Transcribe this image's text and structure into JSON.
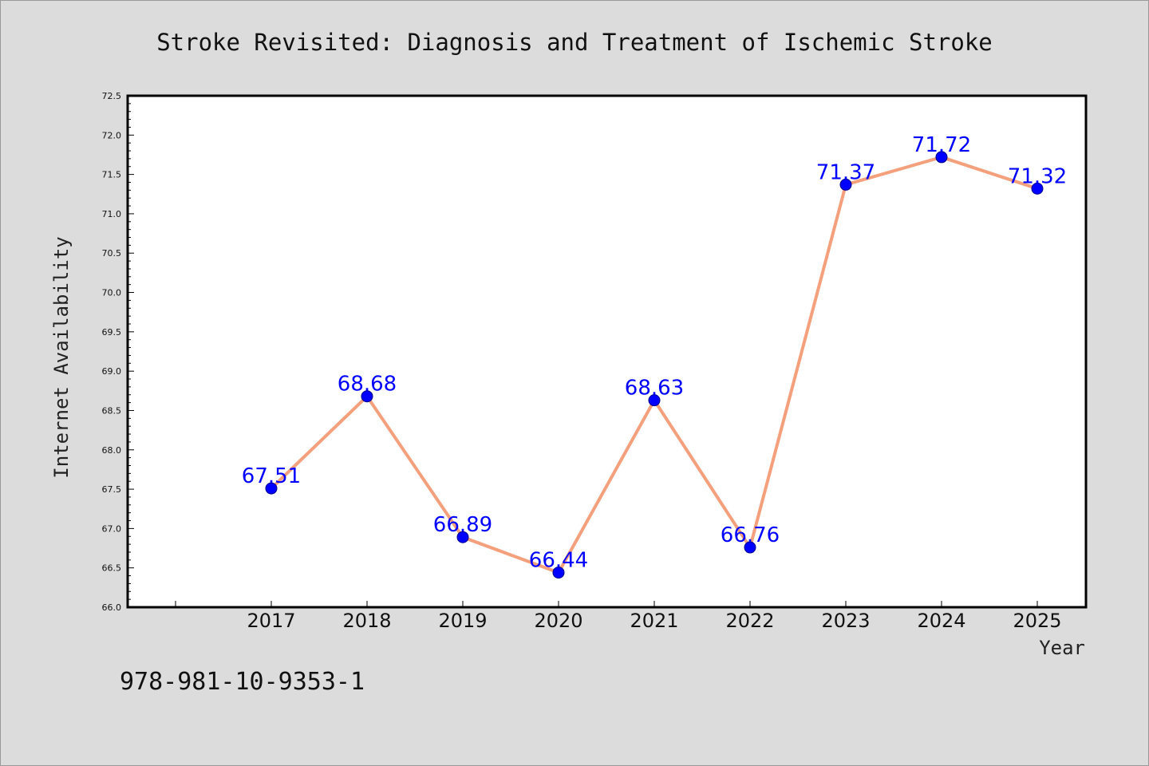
{
  "chart_data": {
    "type": "line",
    "title": "Stroke Revisited: Diagnosis and Treatment of Ischemic Stroke",
    "xlabel": "Year",
    "ylabel": "Internet Availability",
    "categories": [
      "2017",
      "2018",
      "2019",
      "2020",
      "2021",
      "2022",
      "2023",
      "2024",
      "2025"
    ],
    "values": [
      67.51,
      68.68,
      66.89,
      66.44,
      68.63,
      66.76,
      71.37,
      71.72,
      71.32
    ],
    "data_labels": [
      "67.51",
      "68.68",
      "66.89",
      "66.44",
      "68.63",
      "66.76",
      "71.37",
      "71.72",
      "71.32"
    ],
    "ylim": [
      66.0,
      72.5
    ],
    "yticks": [
      "66.0",
      "66.5",
      "67.0",
      "67.5",
      "68.0",
      "68.5",
      "69.0",
      "69.5",
      "70.0",
      "70.5",
      "71.0",
      "71.5",
      "72.0",
      "72.5"
    ],
    "grid": false,
    "line_color": "#f4a07c",
    "marker_color": "#0000ff",
    "label_color": "#0000ff"
  },
  "footer": {
    "isbn": "978-981-10-9353-1"
  }
}
